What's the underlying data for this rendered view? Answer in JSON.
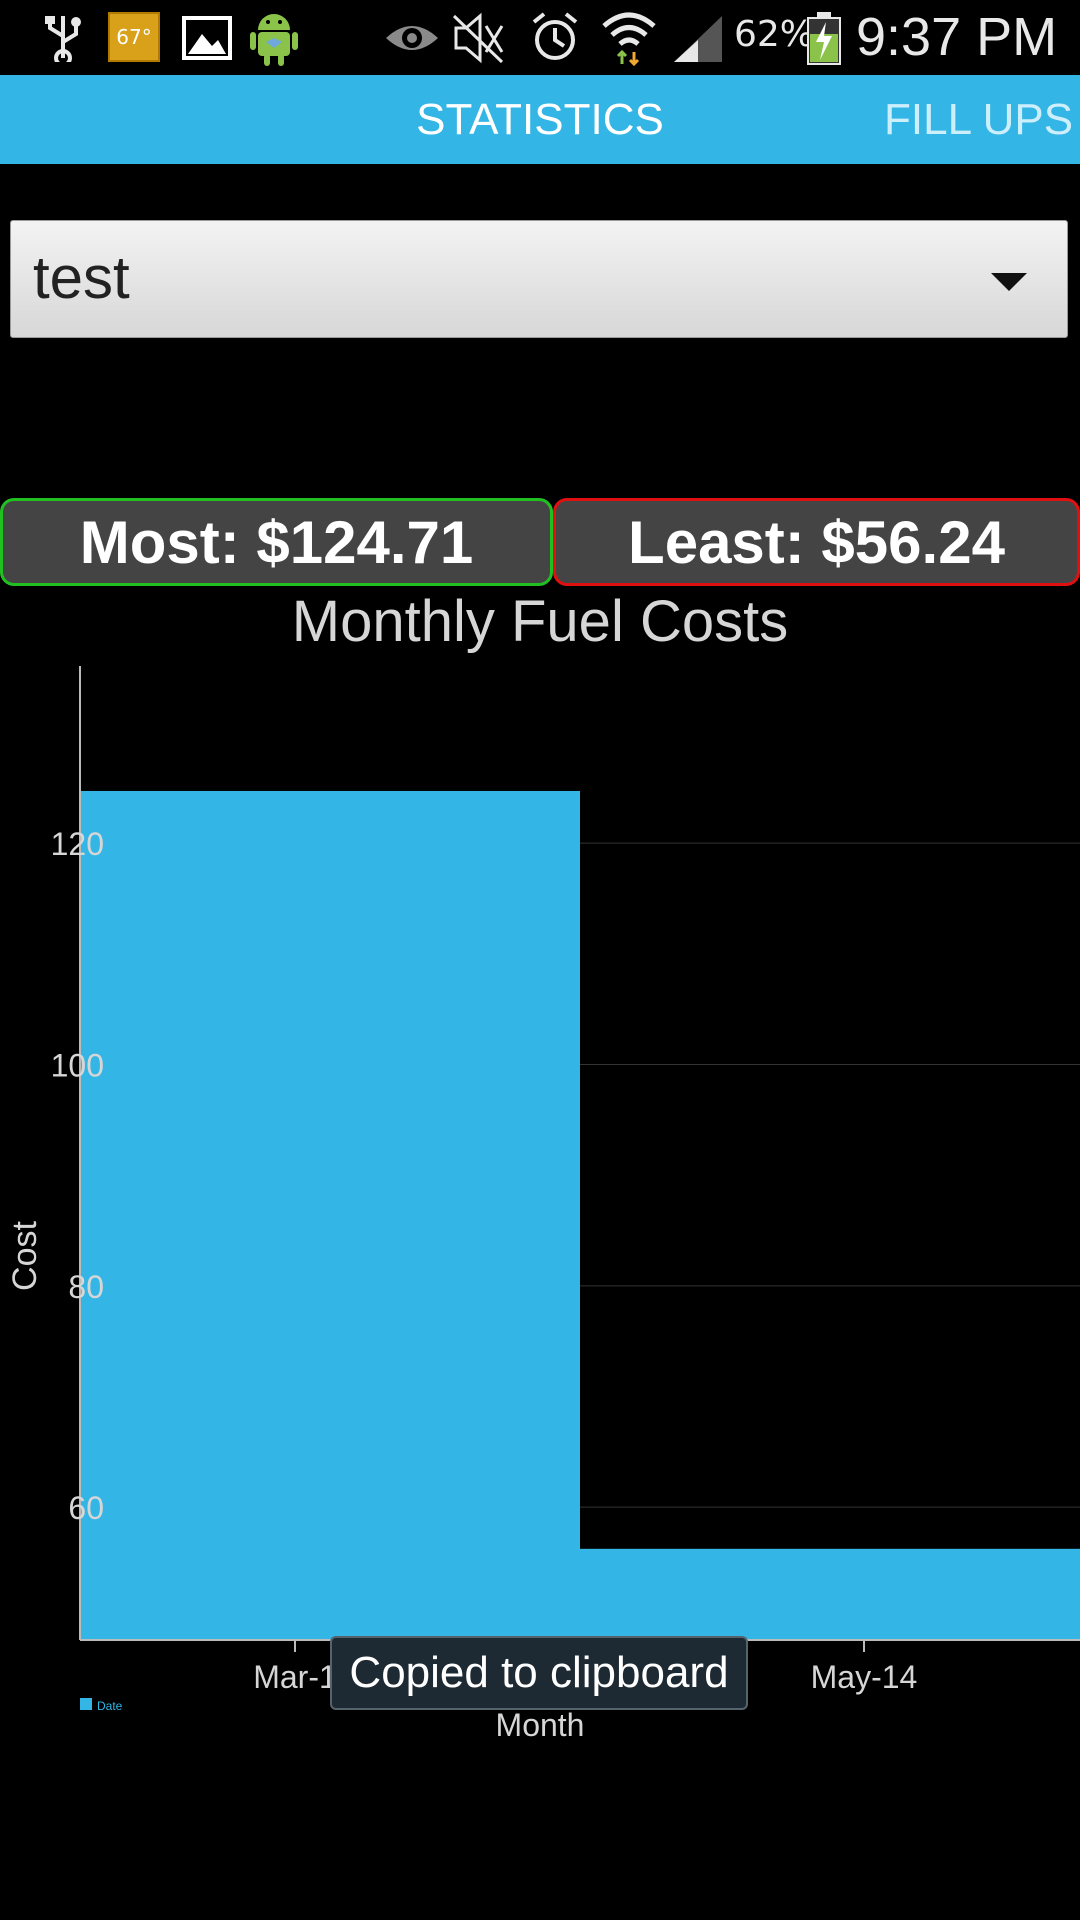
{
  "status_bar": {
    "temperature": "67°",
    "battery_percent": "62%",
    "time": "9:37 PM",
    "icons": [
      "usb-icon",
      "image-icon",
      "android-icon",
      "eye-icon",
      "mute-icon",
      "alarm-icon",
      "wifi-icon",
      "signal-icon",
      "battery-charging-icon"
    ]
  },
  "tabs": {
    "active": "STATISTICS",
    "next": "FILL UPS"
  },
  "vehicle_spinner": {
    "selected": "test"
  },
  "stats": {
    "most_label": "Most: $124.71",
    "least_label": "Least: $56.24"
  },
  "chart_data": {
    "type": "bar",
    "title": "Monthly Fuel Costs",
    "xlabel": "Month",
    "ylabel": "Cost",
    "ylim": [
      48,
      136
    ],
    "yticks": [
      60,
      80,
      100,
      120
    ],
    "x_tick_labels": [
      "Mar-1",
      "May-14"
    ],
    "series": [
      {
        "name": "Date",
        "values": [
          124.71,
          56.24
        ]
      }
    ],
    "legend": "bottom-left",
    "grid": true,
    "bar_color": "#33b5e5"
  },
  "toast": {
    "text": "Copied to clipboard"
  }
}
